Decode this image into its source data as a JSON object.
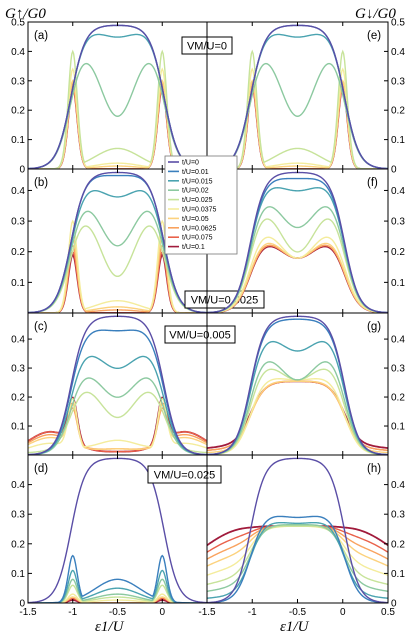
{
  "figure": {
    "ylabel_left": "G↑/G0",
    "ylabel_right": "G↓/G0",
    "xlabel": "ε1/U"
  },
  "chart_data": {
    "type": "line",
    "series_names": [
      "t/U=0",
      "t/U=0.01",
      "t/U=0.015",
      "t/U=0.02",
      "t/U=0.025",
      "t/U=0.0375",
      "t/U=0.05",
      "t/U=0.0625",
      "t/U=0.075",
      "t/U=0.1"
    ],
    "series_colors": [
      "#5a4ea6",
      "#3a7fbd",
      "#4aa3b0",
      "#8cc9a0",
      "#c7e39a",
      "#f4ec9c",
      "#fcd27e",
      "#f9a25e",
      "#e9614a",
      "#a11b3c"
    ],
    "x_ticks": [
      "-1.5",
      "-1",
      "-0.5",
      "0"
    ],
    "x_ticks_right": [
      "-1.5",
      "-1",
      "-0.5",
      "0",
      "0.5"
    ],
    "legend_panel": "b",
    "panels": [
      {
        "id": "a",
        "label": "(a)",
        "vm_label": "VM/U=0",
        "xlim": [
          -1.5,
          0.5
        ],
        "ylim": [
          0,
          0.5
        ],
        "yticks": [
          "0",
          "0.1",
          "0.2",
          "0.3",
          "0.4",
          "0.5"
        ],
        "description": "spin-up conductance, VM/U=0",
        "series": [
          {
            "name": "t/U=0",
            "shape": "plateau",
            "peak": 0.49,
            "dip": 0.49,
            "tail": 0.0
          },
          {
            "name": "t/U=0.01",
            "shape": "plateau",
            "peak": 0.49,
            "dip": 0.49,
            "tail": 0.0
          },
          {
            "name": "t/U=0.015",
            "shape": "plateau",
            "peak": 0.49,
            "dip": 0.45,
            "tail": 0.0
          },
          {
            "name": "t/U=0.02",
            "shape": "plateau",
            "peak": 0.46,
            "dip": 0.18,
            "tail": 0.0
          },
          {
            "name": "t/U=0.025",
            "shape": "split",
            "peak": 0.4,
            "dip": 0.07,
            "tail": 0.0
          },
          {
            "name": "t/U=0.0375",
            "shape": "split",
            "peak": 0.34,
            "dip": 0.02,
            "tail": 0.0
          },
          {
            "name": "t/U=0.05",
            "shape": "split",
            "peak": 0.3,
            "dip": 0.01,
            "tail": 0.0
          },
          {
            "name": "t/U=0.0625",
            "shape": "split",
            "peak": 0.29,
            "dip": 0.0,
            "tail": 0.0
          },
          {
            "name": "t/U=0.075",
            "shape": "split",
            "peak": 0.28,
            "dip": 0.0,
            "tail": 0.0
          },
          {
            "name": "t/U=0.1",
            "shape": "split",
            "peak": 0.28,
            "dip": 0.0,
            "tail": 0.0
          }
        ]
      },
      {
        "id": "e",
        "label": "(e)",
        "xlim": [
          -1.5,
          0.5
        ],
        "ylim": [
          0,
          0.5
        ],
        "yticks": [
          "0",
          "0.1",
          "0.2",
          "0.3",
          "0.4",
          "0.5"
        ],
        "description": "spin-down conductance, VM/U=0",
        "series": [
          {
            "name": "t/U=0",
            "shape": "plateau",
            "peak": 0.49,
            "dip": 0.49,
            "tail": 0.0
          },
          {
            "name": "t/U=0.01",
            "shape": "plateau",
            "peak": 0.49,
            "dip": 0.49,
            "tail": 0.0
          },
          {
            "name": "t/U=0.015",
            "shape": "plateau",
            "peak": 0.49,
            "dip": 0.45,
            "tail": 0.0
          },
          {
            "name": "t/U=0.02",
            "shape": "plateau",
            "peak": 0.46,
            "dip": 0.18,
            "tail": 0.0
          },
          {
            "name": "t/U=0.025",
            "shape": "split",
            "peak": 0.4,
            "dip": 0.07,
            "tail": 0.0
          },
          {
            "name": "t/U=0.0375",
            "shape": "split",
            "peak": 0.34,
            "dip": 0.02,
            "tail": 0.0
          },
          {
            "name": "t/U=0.05",
            "shape": "split",
            "peak": 0.3,
            "dip": 0.01,
            "tail": 0.0
          },
          {
            "name": "t/U=0.0625",
            "shape": "split",
            "peak": 0.29,
            "dip": 0.0,
            "tail": 0.0
          },
          {
            "name": "t/U=0.075",
            "shape": "split",
            "peak": 0.28,
            "dip": 0.0,
            "tail": 0.0
          },
          {
            "name": "t/U=0.1",
            "shape": "split",
            "peak": 0.28,
            "dip": 0.0,
            "tail": 0.0
          }
        ]
      },
      {
        "id": "b",
        "label": "(b)",
        "vm_label": "VM/U=0.0025",
        "xlim": [
          -1.5,
          0.5
        ],
        "ylim": [
          0,
          0.47
        ],
        "yticks": [
          "0.1",
          "0.2",
          "0.3",
          "0.4"
        ],
        "description": "spin-up conductance, VM/U=0.0025",
        "series": [
          {
            "name": "t/U=0",
            "shape": "plateau",
            "peak": 0.46,
            "dip": 0.46,
            "tail": 0.0
          },
          {
            "name": "t/U=0.01",
            "shape": "plateau",
            "peak": 0.46,
            "dip": 0.45,
            "tail": 0.0
          },
          {
            "name": "t/U=0.015",
            "shape": "plateau",
            "peak": 0.44,
            "dip": 0.38,
            "tail": 0.0
          },
          {
            "name": "t/U=0.02",
            "shape": "plateau",
            "peak": 0.41,
            "dip": 0.22,
            "tail": 0.0
          },
          {
            "name": "t/U=0.025",
            "shape": "plateau",
            "peak": 0.37,
            "dip": 0.12,
            "tail": 0.0
          },
          {
            "name": "t/U=0.0375",
            "shape": "split",
            "peak": 0.3,
            "dip": 0.04,
            "tail": 0.0
          },
          {
            "name": "t/U=0.05",
            "shape": "split",
            "peak": 0.25,
            "dip": 0.02,
            "tail": 0.0
          },
          {
            "name": "t/U=0.0625",
            "shape": "split",
            "peak": 0.22,
            "dip": 0.01,
            "tail": 0.0
          },
          {
            "name": "t/U=0.075",
            "shape": "split",
            "peak": 0.2,
            "dip": 0.0,
            "tail": 0.0
          },
          {
            "name": "t/U=0.1",
            "shape": "split",
            "peak": 0.19,
            "dip": 0.0,
            "tail": 0.0
          }
        ]
      },
      {
        "id": "f",
        "label": "(f)",
        "xlim": [
          -1.5,
          0.5
        ],
        "ylim": [
          0,
          0.47
        ],
        "yticks": [
          "0.1",
          "0.2",
          "0.3",
          "0.4"
        ],
        "description": "spin-down conductance, VM/U=0.0025",
        "series": [
          {
            "name": "t/U=0",
            "shape": "plateau",
            "peak": 0.46,
            "dip": 0.46,
            "tail": 0.0
          },
          {
            "name": "t/U=0.01",
            "shape": "plateau",
            "peak": 0.45,
            "dip": 0.44,
            "tail": 0.0
          },
          {
            "name": "t/U=0.015",
            "shape": "plateau",
            "peak": 0.44,
            "dip": 0.4,
            "tail": 0.0
          },
          {
            "name": "t/U=0.02",
            "shape": "plateau",
            "peak": 0.41,
            "dip": 0.28,
            "tail": 0.0
          },
          {
            "name": "t/U=0.025",
            "shape": "plateau",
            "peak": 0.38,
            "dip": 0.2,
            "tail": 0.0
          },
          {
            "name": "t/U=0.0375",
            "shape": "plateau",
            "peak": 0.3,
            "dip": 0.18,
            "tail": 0.0
          },
          {
            "name": "t/U=0.05",
            "shape": "plateau",
            "peak": 0.27,
            "dip": 0.18,
            "tail": 0.0
          },
          {
            "name": "t/U=0.0625",
            "shape": "plateau",
            "peak": 0.26,
            "dip": 0.18,
            "tail": 0.0
          },
          {
            "name": "t/U=0.075",
            "shape": "plateau",
            "peak": 0.26,
            "dip": 0.18,
            "tail": 0.0
          },
          {
            "name": "t/U=0.1",
            "shape": "plateau",
            "peak": 0.255,
            "dip": 0.18,
            "tail": 0.0
          }
        ]
      },
      {
        "id": "c",
        "label": "(c)",
        "vm_label": "VM/U=0.005",
        "xlim": [
          -1.5,
          0.5
        ],
        "ylim": [
          0,
          0.49
        ],
        "yticks": [
          "0.1",
          "0.2",
          "0.3",
          "0.4"
        ],
        "description": "spin-up conductance, VM/U=0.005",
        "series": [
          {
            "name": "t/U=0",
            "shape": "plateau",
            "peak": 0.48,
            "dip": 0.48,
            "tail": 0.0
          },
          {
            "name": "t/U=0.01",
            "shape": "plateau",
            "peak": 0.45,
            "dip": 0.43,
            "tail": 0.0
          },
          {
            "name": "t/U=0.015",
            "shape": "plateau",
            "peak": 0.39,
            "dip": 0.3,
            "tail": 0.0
          },
          {
            "name": "t/U=0.02",
            "shape": "plateau",
            "peak": 0.32,
            "dip": 0.2,
            "tail": 0.0
          },
          {
            "name": "t/U=0.025",
            "shape": "plateau",
            "peak": 0.27,
            "dip": 0.13,
            "tail": 0.01
          },
          {
            "name": "t/U=0.0375",
            "shape": "split",
            "peak": 0.17,
            "dip": 0.05,
            "tail": 0.04
          },
          {
            "name": "t/U=0.05",
            "shape": "split",
            "peak": 0.14,
            "dip": 0.02,
            "tail": 0.06
          },
          {
            "name": "t/U=0.0625",
            "shape": "split",
            "peak": 0.12,
            "dip": 0.02,
            "tail": 0.07
          },
          {
            "name": "t/U=0.075",
            "shape": "split",
            "peak": 0.13,
            "dip": 0.01,
            "tail": 0.08
          },
          {
            "name": "t/U=0.1",
            "shape": "split",
            "peak": 0.15,
            "dip": 0.01,
            "tail": 0.08
          }
        ]
      },
      {
        "id": "g",
        "label": "(g)",
        "xlim": [
          -1.5,
          0.5
        ],
        "ylim": [
          0,
          0.49
        ],
        "yticks": [
          "0.1",
          "0.2",
          "0.3",
          "0.4"
        ],
        "description": "spin-down conductance, VM/U=0.005",
        "series": [
          {
            "name": "t/U=0",
            "shape": "plateau",
            "peak": 0.48,
            "dip": 0.48,
            "tail": 0.0
          },
          {
            "name": "t/U=0.01",
            "shape": "plateau",
            "peak": 0.47,
            "dip": 0.47,
            "tail": 0.0
          },
          {
            "name": "t/U=0.015",
            "shape": "plateau",
            "peak": 0.44,
            "dip": 0.36,
            "tail": 0.0
          },
          {
            "name": "t/U=0.02",
            "shape": "plateau",
            "peak": 0.38,
            "dip": 0.26,
            "tail": 0.0
          },
          {
            "name": "t/U=0.025",
            "shape": "plateau",
            "peak": 0.34,
            "dip": 0.26,
            "tail": 0.0
          },
          {
            "name": "t/U=0.0375",
            "shape": "plateau",
            "peak": 0.28,
            "dip": 0.26,
            "tail": 0.0
          },
          {
            "name": "t/U=0.05",
            "shape": "plateau",
            "peak": 0.26,
            "dip": 0.255,
            "tail": 0.01
          },
          {
            "name": "t/U=0.0625",
            "shape": "plateau",
            "peak": 0.255,
            "dip": 0.255,
            "tail": 0.02
          },
          {
            "name": "t/U=0.075",
            "shape": "plateau",
            "peak": 0.255,
            "dip": 0.255,
            "tail": 0.02
          },
          {
            "name": "t/U=0.1",
            "shape": "plateau",
            "peak": 0.255,
            "dip": 0.255,
            "tail": 0.03
          }
        ]
      },
      {
        "id": "d",
        "label": "(d)",
        "vm_label": "VM/U=0.025",
        "xlim": [
          -1.5,
          0.5
        ],
        "ylim": [
          0,
          0.5
        ],
        "yticks": [
          "0",
          "0.1",
          "0.2",
          "0.3",
          "0.4"
        ],
        "description": "spin-up conductance, VM/U=0.025",
        "series": [
          {
            "name": "t/U=0",
            "shape": "plateau",
            "peak": 0.49,
            "dip": 0.49,
            "tail": 0.0
          },
          {
            "name": "t/U=0.01",
            "shape": "split",
            "peak": 0.16,
            "dip": 0.08,
            "tail": 0.0
          },
          {
            "name": "t/U=0.015",
            "shape": "split",
            "peak": 0.11,
            "dip": 0.05,
            "tail": 0.0
          },
          {
            "name": "t/U=0.02",
            "shape": "split",
            "peak": 0.08,
            "dip": 0.03,
            "tail": 0.0
          },
          {
            "name": "t/U=0.025",
            "shape": "split",
            "peak": 0.06,
            "dip": 0.02,
            "tail": 0.0
          },
          {
            "name": "t/U=0.0375",
            "shape": "split",
            "peak": 0.03,
            "dip": 0.01,
            "tail": 0.0
          },
          {
            "name": "t/U=0.05",
            "shape": "split",
            "peak": 0.02,
            "dip": 0.0,
            "tail": 0.0
          },
          {
            "name": "t/U=0.0625",
            "shape": "split",
            "peak": 0.02,
            "dip": 0.0,
            "tail": 0.0
          },
          {
            "name": "t/U=0.075",
            "shape": "split",
            "peak": 0.015,
            "dip": 0.0,
            "tail": 0.0
          },
          {
            "name": "t/U=0.1",
            "shape": "split",
            "peak": 0.01,
            "dip": 0.0,
            "tail": 0.0
          }
        ]
      },
      {
        "id": "h",
        "label": "(h)",
        "xlim": [
          -1.5,
          0.5
        ],
        "ylim": [
          0,
          0.5
        ],
        "yticks": [
          "0",
          "0.1",
          "0.2",
          "0.3",
          "0.4"
        ],
        "description": "spin-down conductance, VM/U=0.025",
        "series": [
          {
            "name": "t/U=0",
            "shape": "plateau",
            "peak": 0.49,
            "dip": 0.49,
            "tail": 0.0
          },
          {
            "name": "t/U=0.01",
            "shape": "plateau",
            "peak": 0.31,
            "dip": 0.29,
            "tail": 0.0
          },
          {
            "name": "t/U=0.015",
            "shape": "plateau",
            "peak": 0.285,
            "dip": 0.27,
            "tail": 0.02
          },
          {
            "name": "t/U=0.02",
            "shape": "plateau",
            "peak": 0.27,
            "dip": 0.265,
            "tail": 0.05
          },
          {
            "name": "t/U=0.025",
            "shape": "plateau",
            "peak": 0.265,
            "dip": 0.26,
            "tail": 0.08
          },
          {
            "name": "t/U=0.0375",
            "shape": "plateau",
            "peak": 0.26,
            "dip": 0.26,
            "tail": 0.12
          },
          {
            "name": "t/U=0.05",
            "shape": "plateau",
            "peak": 0.26,
            "dip": 0.26,
            "tail": 0.16
          },
          {
            "name": "t/U=0.0625",
            "shape": "plateau",
            "peak": 0.26,
            "dip": 0.26,
            "tail": 0.19
          },
          {
            "name": "t/U=0.075",
            "shape": "plateau",
            "peak": 0.26,
            "dip": 0.26,
            "tail": 0.22
          },
          {
            "name": "t/U=0.1",
            "shape": "plateau",
            "peak": 0.26,
            "dip": 0.26,
            "tail": 0.25
          }
        ]
      }
    ]
  }
}
